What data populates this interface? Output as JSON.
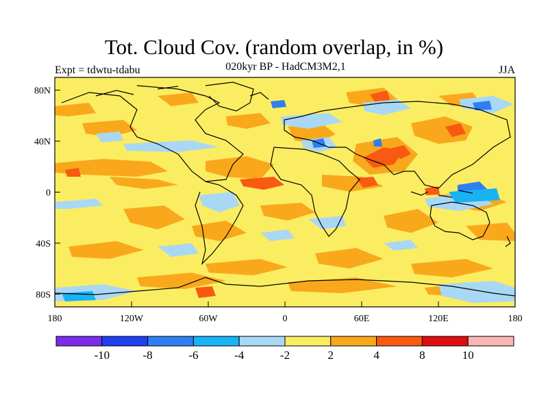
{
  "title": "Tot. Cloud Cov. (random overlap, in %)",
  "subtitle": "020kyr BP - HadCM3M2,1",
  "experiment_label": "Expt = tdwtu-tdabu",
  "season": "JJA",
  "axes": {
    "x_ticks": [
      {
        "value": -180,
        "label": "180"
      },
      {
        "value": -120,
        "label": "120W"
      },
      {
        "value": -60,
        "label": "60W"
      },
      {
        "value": 0,
        "label": "0"
      },
      {
        "value": 60,
        "label": "60E"
      },
      {
        "value": 120,
        "label": "120E"
      },
      {
        "value": 180,
        "label": "180"
      }
    ],
    "y_ticks": [
      {
        "value": 80,
        "label": "80N"
      },
      {
        "value": 40,
        "label": "40N"
      },
      {
        "value": 0,
        "label": "0"
      },
      {
        "value": -40,
        "label": "40S"
      },
      {
        "value": -80,
        "label": "80S"
      }
    ],
    "lon_range": [
      -180,
      180
    ],
    "lat_range": [
      -90,
      90
    ]
  },
  "colorbar": {
    "colors": [
      "#7b2ee8",
      "#1f3ff0",
      "#2f7ff2",
      "#17b3f5",
      "#a9d8f5",
      "#fbed62",
      "#f9a81c",
      "#f85a12",
      "#de0f0f",
      "#f9b4b4"
    ],
    "labels": [
      "-10",
      "-8",
      "-6",
      "-4",
      "-2",
      "2",
      "4",
      "8",
      "10"
    ]
  },
  "colors": {
    "background_field": "#fbed62",
    "coastline": "#000000"
  }
}
